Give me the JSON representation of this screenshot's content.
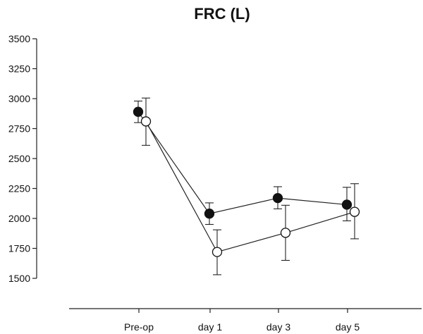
{
  "chart_data": {
    "type": "line",
    "title": "FRC (L)",
    "xlabel": "",
    "ylabel": "",
    "categories": [
      "Pre-op",
      "day 1",
      "day 3",
      "day 5"
    ],
    "ylim": [
      1500,
      3500
    ],
    "yticks": [
      1500,
      1750,
      2000,
      2250,
      2500,
      2750,
      3000,
      3250,
      3500
    ],
    "yaxis_min_tick": 1500,
    "grid": false,
    "legend": "none",
    "series": [
      {
        "marker": "filled-circle",
        "color": "#111111",
        "values": [
          2890,
          2040,
          2170,
          2115
        ],
        "error_low": [
          2800,
          1950,
          2080,
          1980
        ],
        "error_high": [
          2980,
          2130,
          2265,
          2260
        ]
      },
      {
        "marker": "open-circle",
        "color": "#111111",
        "values": [
          2810,
          1720,
          1880,
          2055
        ],
        "error_low": [
          2610,
          1530,
          1650,
          1830
        ],
        "error_high": [
          3005,
          1905,
          2110,
          2290
        ]
      }
    ]
  }
}
